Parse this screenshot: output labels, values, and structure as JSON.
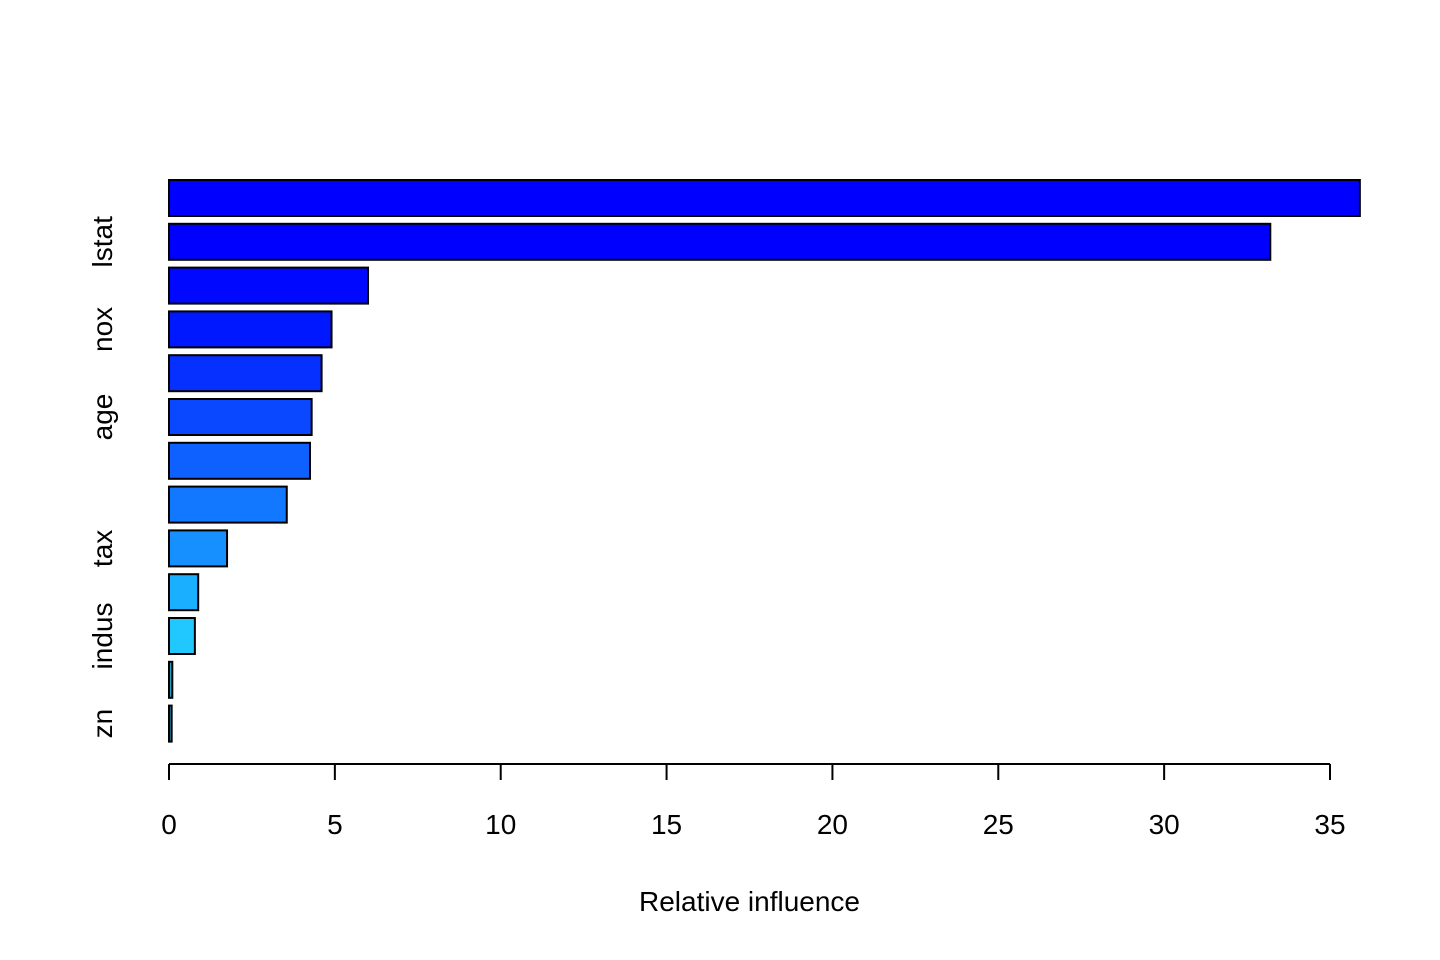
{
  "chart_data": {
    "type": "bar",
    "orientation": "horizontal",
    "title": "",
    "xlabel": "Relative influence",
    "ylabel": "",
    "xlim": [
      0,
      35
    ],
    "xticks": [
      "0",
      "5",
      "10",
      "15",
      "20",
      "25",
      "30",
      "35"
    ],
    "grid": false,
    "legend": "none",
    "bars": [
      {
        "label": "",
        "value": 35.9,
        "color": "#0000ff"
      },
      {
        "label": "lstat",
        "value": 33.2,
        "color": "#0000ff"
      },
      {
        "label": "",
        "value": 6.0,
        "color": "#0008ff"
      },
      {
        "label": "nox",
        "value": 4.9,
        "color": "#0018ff"
      },
      {
        "label": "",
        "value": 4.6,
        "color": "#0530ff"
      },
      {
        "label": "age",
        "value": 4.3,
        "color": "#0a48ff"
      },
      {
        "label": "",
        "value": 4.25,
        "color": "#0e60ff"
      },
      {
        "label": "",
        "value": 3.55,
        "color": "#1278ff"
      },
      {
        "label": "tax",
        "value": 1.75,
        "color": "#1690ff"
      },
      {
        "label": "",
        "value": 0.88,
        "color": "#1ab0ff"
      },
      {
        "label": "indus",
        "value": 0.78,
        "color": "#20c8ff"
      },
      {
        "label": "",
        "value": 0.1,
        "color": "#20a0c0"
      },
      {
        "label": "zn",
        "value": 0.08,
        "color": "#20a0c0"
      }
    ]
  }
}
